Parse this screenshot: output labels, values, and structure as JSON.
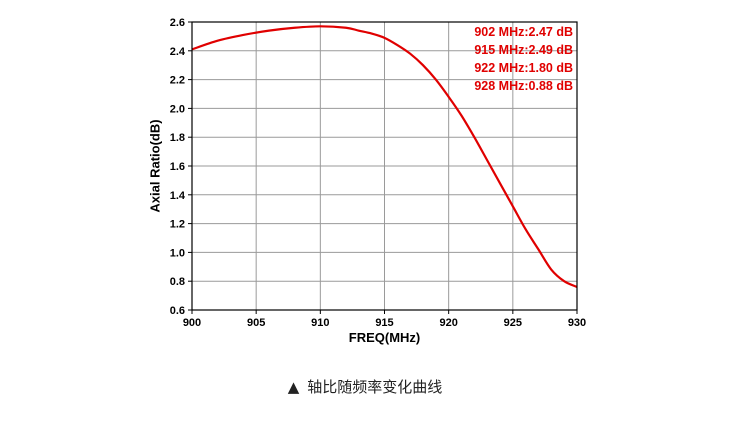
{
  "chart_data": {
    "type": "line",
    "xlabel": "FREQ(MHz)",
    "ylabel": "Axial Ratio(dB)",
    "xlim": [
      900,
      930
    ],
    "ylim": [
      0.6,
      2.6
    ],
    "x_ticks": [
      "900",
      "905",
      "910",
      "915",
      "920",
      "925",
      "930"
    ],
    "y_ticks": [
      "0.6",
      "0.8",
      "1.0",
      "1.2",
      "1.4",
      "1.6",
      "1.8",
      "2.0",
      "2.2",
      "2.4",
      "2.6"
    ],
    "grid": true,
    "series": [
      {
        "color": "#e00000",
        "x": [
          900,
          902,
          904,
          906,
          908,
          910,
          912,
          913,
          914,
          915,
          916,
          917,
          918,
          919,
          920,
          921,
          922,
          923,
          924,
          925,
          926,
          927,
          928,
          929,
          930
        ],
        "y": [
          2.41,
          2.47,
          2.51,
          2.54,
          2.56,
          2.57,
          2.56,
          2.54,
          2.52,
          2.49,
          2.44,
          2.38,
          2.3,
          2.2,
          2.08,
          1.95,
          1.8,
          1.64,
          1.48,
          1.32,
          1.16,
          1.02,
          0.88,
          0.8,
          0.76
        ]
      }
    ],
    "annotations": [
      "902 MHz:2.47 dB",
      "915 MHz:2.49 dB",
      "922 MHz:1.80 dB",
      "928 MHz:0.88 dB"
    ],
    "annotation_color": "#e00000"
  },
  "caption": {
    "marker": "▲",
    "text": "轴比随频率变化曲线"
  }
}
